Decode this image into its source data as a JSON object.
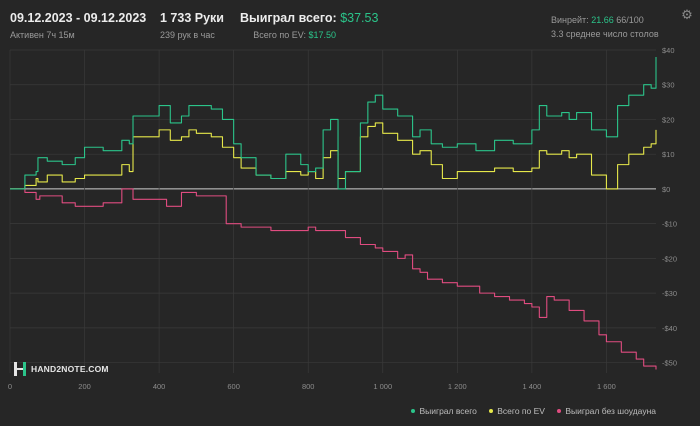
{
  "header": {
    "date_range": "09.12.2023 - 09.12.2023",
    "active": "Активен 7ч 15м",
    "hands": "1 733 Руки",
    "hands_per_hour": "239 рук в час",
    "won_total_label": "Выиграл всего:",
    "won_total_value": "$37.53",
    "ev_label": "Всего по EV:",
    "ev_value": "$17.50",
    "winrate_label": "Винрейт:",
    "winrate_value": "21.66",
    "winrate_suffix": "66/100",
    "tables": "3.3 среднее число столов"
  },
  "logo": {
    "text": "HAND2NOTE.COM"
  },
  "icons": {
    "settings": "gear-icon"
  },
  "colors": {
    "won": "#2bc48a",
    "ev": "#e6e84a",
    "showdown": "#e04c80",
    "zero": "#cfcfcf",
    "grid": "#3a3a3a"
  },
  "chart_data": {
    "type": "line",
    "xlim": [
      0,
      1733
    ],
    "ylim": [
      -53,
      40
    ],
    "x_ticks": [
      0,
      200,
      400,
      600,
      800,
      1000,
      1200,
      1400,
      1600
    ],
    "x_tick_labels": [
      "0",
      "200",
      "400",
      "600",
      "800",
      "1 000",
      "1 200",
      "1 400",
      "1 600"
    ],
    "y_ticks": [
      40,
      30,
      20,
      10,
      0,
      -10,
      -20,
      -30,
      -40,
      -50
    ],
    "y_tick_labels": [
      "$40",
      "$30",
      "$20",
      "$10",
      "$0",
      "-$10",
      "-$20",
      "-$30",
      "-$40",
      "-$50"
    ],
    "legend": [
      "Выиграл всего",
      "Всего по EV",
      "Выиграл без шоудауна"
    ],
    "series": [
      {
        "name": "Выиграл всего",
        "x": [
          0,
          40,
          70,
          75,
          100,
          140,
          175,
          200,
          250,
          300,
          320,
          330,
          370,
          400,
          430,
          460,
          480,
          500,
          540,
          570,
          600,
          620,
          660,
          700,
          740,
          780,
          800,
          820,
          840,
          860,
          880,
          900,
          940,
          960,
          980,
          1000,
          1040,
          1080,
          1100,
          1130,
          1160,
          1200,
          1250,
          1300,
          1350,
          1400,
          1420,
          1440,
          1480,
          1500,
          1520,
          1560,
          1600,
          1630,
          1660,
          1700,
          1720,
          1733
        ],
        "y": [
          0,
          4,
          5,
          9,
          8,
          7,
          9,
          12,
          11,
          14,
          13,
          21,
          21,
          24,
          19,
          21,
          24,
          24,
          23,
          20,
          13,
          9,
          4,
          3,
          10,
          7,
          5,
          6,
          17,
          20,
          0,
          5,
          19,
          25,
          27,
          23,
          21,
          15,
          17,
          13,
          12,
          13,
          11,
          14,
          13,
          17,
          24,
          21,
          22,
          20,
          22,
          17,
          15,
          24,
          27,
          30,
          29,
          38
        ]
      },
      {
        "name": "Всего по EV",
        "x": [
          0,
          40,
          70,
          75,
          100,
          140,
          175,
          200,
          250,
          300,
          320,
          330,
          370,
          400,
          430,
          460,
          480,
          500,
          540,
          570,
          600,
          620,
          660,
          700,
          740,
          780,
          800,
          820,
          840,
          860,
          880,
          900,
          940,
          960,
          980,
          1000,
          1040,
          1080,
          1100,
          1130,
          1160,
          1200,
          1250,
          1300,
          1350,
          1400,
          1420,
          1440,
          1480,
          1500,
          1520,
          1560,
          1600,
          1630,
          1660,
          1700,
          1720,
          1733
        ],
        "y": [
          0,
          1,
          3,
          2,
          4,
          2,
          3,
          4,
          4,
          7,
          5,
          15,
          15,
          17,
          14,
          15,
          17,
          16,
          15,
          12,
          9,
          6,
          4,
          3,
          5,
          4,
          5,
          3,
          9,
          11,
          3,
          5,
          15,
          18,
          19,
          16,
          14,
          10,
          11,
          7,
          3,
          5,
          5,
          6,
          5,
          6,
          11,
          10,
          11,
          9,
          10,
          4,
          0,
          7,
          10,
          12,
          13,
          17
        ]
      },
      {
        "name": "Выиграл без шоудауна",
        "x": [
          0,
          40,
          70,
          80,
          100,
          140,
          175,
          200,
          250,
          300,
          330,
          380,
          420,
          460,
          500,
          540,
          580,
          620,
          660,
          700,
          740,
          780,
          800,
          820,
          860,
          900,
          940,
          980,
          1000,
          1040,
          1060,
          1080,
          1100,
          1120,
          1160,
          1200,
          1260,
          1300,
          1340,
          1380,
          1400,
          1420,
          1440,
          1460,
          1500,
          1540,
          1580,
          1600,
          1640,
          1680,
          1700,
          1733
        ],
        "y": [
          0,
          -1,
          -3,
          -2,
          -2,
          -4,
          -5,
          -5,
          -4,
          0,
          -3,
          -3,
          -5,
          -1,
          -2,
          -2,
          -10,
          -11,
          -11,
          -12,
          -12,
          -12,
          -11,
          -12,
          -12,
          -14,
          -16,
          -17,
          -18,
          -20,
          -19,
          -23,
          -24,
          -26,
          -27,
          -28,
          -30,
          -31,
          -32,
          -33,
          -34,
          -37,
          -31,
          -32,
          -35,
          -38,
          -42,
          -44,
          -47,
          -49,
          -51,
          -52
        ]
      }
    ]
  }
}
